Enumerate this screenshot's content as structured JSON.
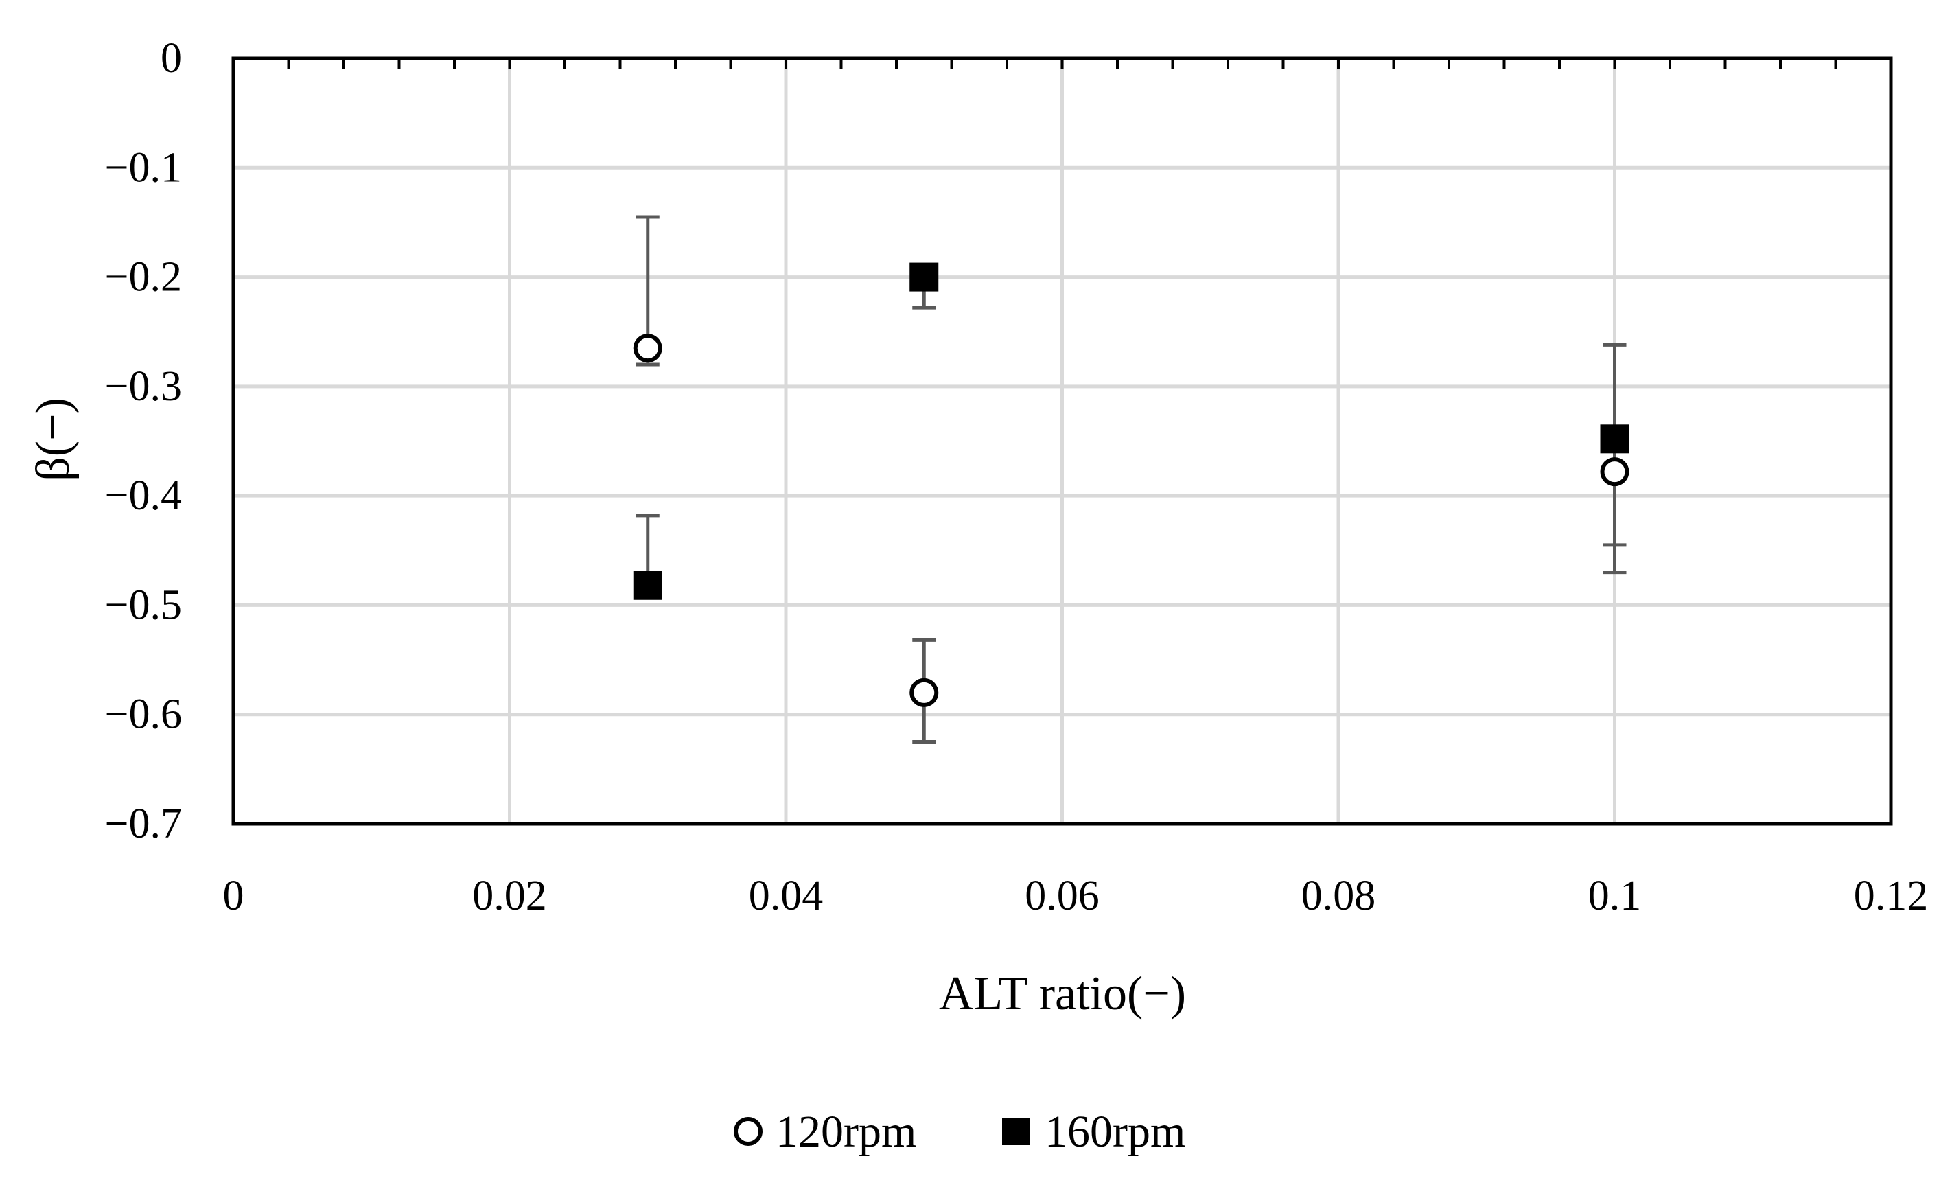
{
  "chart_data": {
    "type": "scatter",
    "xlabel": "ALT ratio(−)",
    "ylabel": "β(−)",
    "xlim": [
      0,
      0.12
    ],
    "ylim": [
      -0.7,
      0
    ],
    "x_ticks": [
      0,
      0.02,
      0.04,
      0.06,
      0.08,
      0.1,
      0.12
    ],
    "x_tick_labels": [
      "0",
      "0.02",
      "0.04",
      "0.06",
      "0.08",
      "0.1",
      "0.12"
    ],
    "y_ticks": [
      0,
      -0.1,
      -0.2,
      -0.3,
      -0.4,
      -0.5,
      -0.6,
      -0.7
    ],
    "y_tick_labels": [
      "0",
      "−0.1",
      "−0.2",
      "−0.3",
      "−0.4",
      "−0.5",
      "−0.6",
      "−0.7"
    ],
    "grid": true,
    "legend_position": "bottom-center",
    "series": [
      {
        "name": "120rpm",
        "marker": "open-circle",
        "color": "#000000",
        "points": [
          {
            "x": 0.03,
            "y": -0.265,
            "err_low": -0.28,
            "err_high": -0.145
          },
          {
            "x": 0.05,
            "y": -0.58,
            "err_low": -0.625,
            "err_high": -0.532
          },
          {
            "x": 0.1,
            "y": -0.378,
            "err_low": -0.47,
            "err_high": -0.378
          }
        ]
      },
      {
        "name": "160rpm",
        "marker": "filled-square",
        "color": "#000000",
        "points": [
          {
            "x": 0.03,
            "y": -0.482,
            "err_low": -0.482,
            "err_high": -0.418
          },
          {
            "x": 0.05,
            "y": -0.2,
            "err_low": -0.228,
            "err_high": -0.2
          },
          {
            "x": 0.1,
            "y": -0.348,
            "err_low": -0.445,
            "err_high": -0.262
          }
        ]
      }
    ],
    "colors": {
      "grid": "#d9d9d9",
      "axis": "#000000",
      "errorbar": "#595959",
      "marker_fill_open": "#ffffff",
      "marker_fill_solid": "#000000"
    }
  }
}
